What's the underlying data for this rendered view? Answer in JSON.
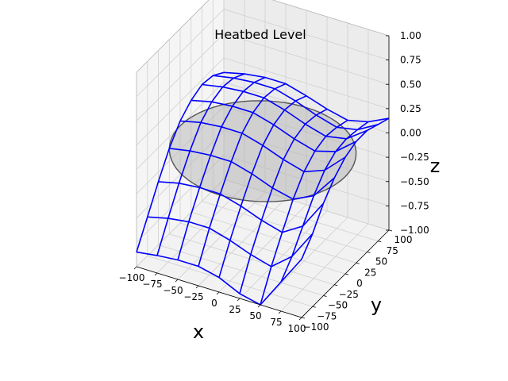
{
  "chart_data": {
    "type": "surface3d",
    "title": "Heatbed Level",
    "xlabel": "x",
    "ylabel": "y",
    "zlabel": "z",
    "xlim": [
      -100,
      100
    ],
    "ylim": [
      -100,
      100
    ],
    "zlim": [
      -1,
      1
    ],
    "x_ticks": [
      -100,
      -75,
      -50,
      -25,
      0,
      25,
      50,
      75,
      100
    ],
    "y_ticks": [
      -100,
      -75,
      -50,
      -25,
      0,
      25,
      50,
      75,
      100
    ],
    "z_ticks": [
      -1.0,
      -0.75,
      -0.5,
      -0.25,
      0.0,
      0.25,
      0.5,
      0.75,
      1.0
    ],
    "x_tick_labels": [
      "−100",
      "−75",
      "−50",
      "−25",
      "0",
      "25",
      "50",
      "75",
      "100"
    ],
    "y_tick_labels": [
      "−100",
      "−75",
      "−50",
      "−25",
      "0",
      "25",
      "50",
      "75",
      "100"
    ],
    "z_tick_labels": [
      "−1.00",
      "−0.75",
      "−0.50",
      "−0.25",
      "0.00",
      "0.25",
      "0.50",
      "0.75",
      "1.00"
    ],
    "grid": true,
    "bed": {
      "shape": "disc",
      "radius": 100,
      "z": 0,
      "fill": "#b0b0b0",
      "edge": "#555555"
    },
    "mesh": {
      "color": "#0000ff",
      "x": [
        -100,
        -75,
        -50,
        -25,
        0,
        25,
        50,
        75,
        100
      ],
      "y": [
        -100,
        -75,
        -50,
        -25,
        0,
        25,
        50,
        75,
        100
      ],
      "z": [
        [
          -0.85,
          -0.82,
          -0.8,
          -0.8,
          -0.85,
          -0.95,
          -1.0,
          -0.7,
          -0.4
        ],
        [
          -0.6,
          -0.55,
          -0.52,
          -0.52,
          -0.58,
          -0.66,
          -0.72,
          -0.55,
          -0.25
        ],
        [
          -0.35,
          -0.3,
          -0.28,
          -0.28,
          -0.34,
          -0.42,
          -0.48,
          -0.35,
          -0.05
        ],
        [
          -0.12,
          -0.08,
          -0.06,
          -0.06,
          -0.12,
          -0.2,
          -0.25,
          -0.15,
          0.1
        ],
        [
          0.05,
          0.1,
          0.12,
          0.12,
          0.06,
          -0.02,
          -0.08,
          0.0,
          0.2
        ],
        [
          0.15,
          0.2,
          0.22,
          0.22,
          0.16,
          0.08,
          0.02,
          0.08,
          0.25
        ],
        [
          0.2,
          0.24,
          0.26,
          0.26,
          0.2,
          0.12,
          0.06,
          0.1,
          0.25
        ],
        [
          0.18,
          0.22,
          0.24,
          0.24,
          0.18,
          0.1,
          0.04,
          0.08,
          0.2
        ],
        [
          0.1,
          0.15,
          0.18,
          0.18,
          0.12,
          0.05,
          0.0,
          0.05,
          0.15
        ]
      ]
    }
  }
}
